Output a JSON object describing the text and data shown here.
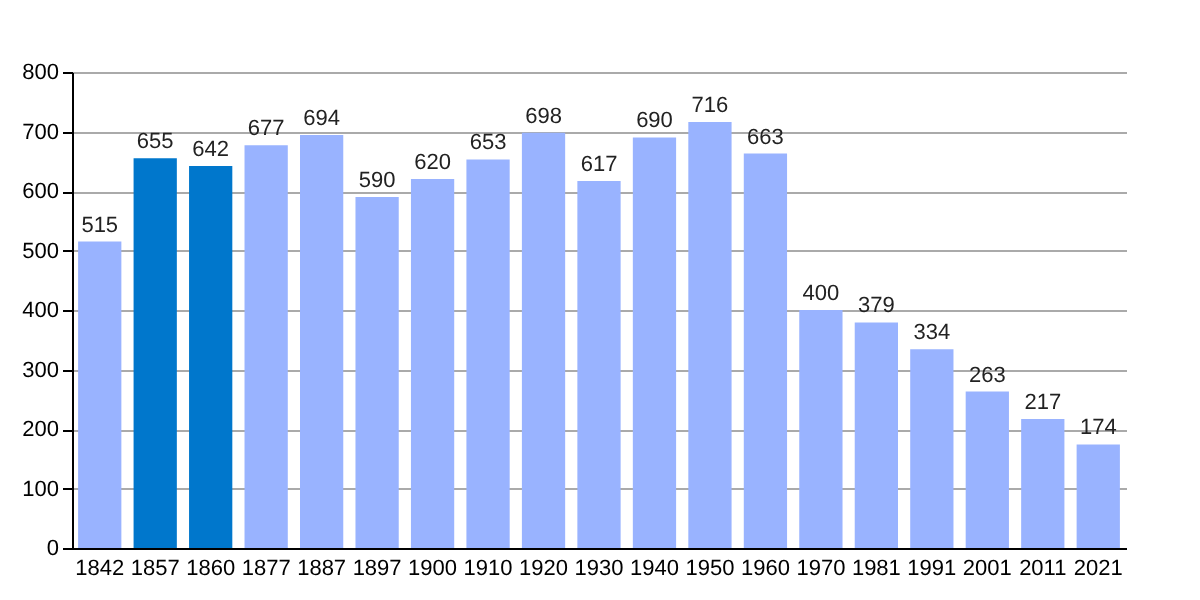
{
  "chart_data": {
    "type": "bar",
    "categories": [
      "1842",
      "1857",
      "1860",
      "1877",
      "1887",
      "1897",
      "1900",
      "1910",
      "1920",
      "1930",
      "1940",
      "1950",
      "1960",
      "1970",
      "1981",
      "1991",
      "2001",
      "2011",
      "2021"
    ],
    "values": [
      515,
      655,
      642,
      677,
      694,
      590,
      620,
      653,
      698,
      617,
      690,
      716,
      663,
      400,
      379,
      334,
      263,
      217,
      174
    ],
    "colors": [
      "#99b3ff",
      "#0077cc",
      "#0077cc",
      "#99b3ff",
      "#99b3ff",
      "#99b3ff",
      "#99b3ff",
      "#99b3ff",
      "#99b3ff",
      "#99b3ff",
      "#99b3ff",
      "#99b3ff",
      "#99b3ff",
      "#99b3ff",
      "#99b3ff",
      "#99b3ff",
      "#99b3ff",
      "#99b3ff",
      "#99b3ff"
    ],
    "ylim": [
      0,
      800
    ],
    "yticks": [
      0,
      100,
      200,
      300,
      400,
      500,
      600,
      700,
      800
    ],
    "grid": "y",
    "data_labels": true
  }
}
